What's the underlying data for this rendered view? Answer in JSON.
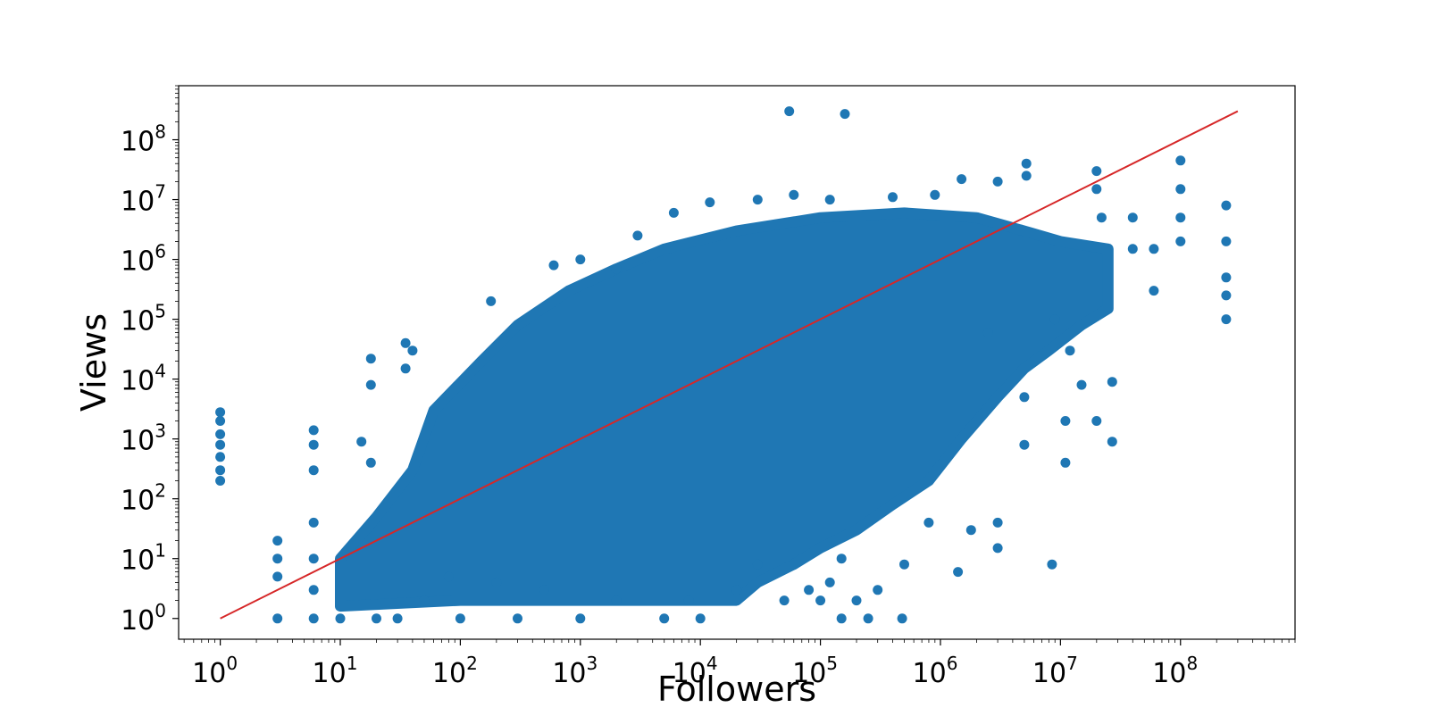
{
  "chart_data": {
    "type": "scatter",
    "title": "",
    "xlabel": "Followers",
    "ylabel": "Views",
    "x_scale": "log",
    "y_scale": "log",
    "xlim": [
      0.45,
      900000000
    ],
    "ylim": [
      0.45,
      800000000
    ],
    "x_ticks": [
      {
        "base": "10",
        "exp": "0",
        "value": 1
      },
      {
        "base": "10",
        "exp": "1",
        "value": 10
      },
      {
        "base": "10",
        "exp": "2",
        "value": 100
      },
      {
        "base": "10",
        "exp": "3",
        "value": 1000
      },
      {
        "base": "10",
        "exp": "4",
        "value": 10000
      },
      {
        "base": "10",
        "exp": "5",
        "value": 100000
      },
      {
        "base": "10",
        "exp": "6",
        "value": 1000000
      },
      {
        "base": "10",
        "exp": "7",
        "value": 10000000
      },
      {
        "base": "10",
        "exp": "8",
        "value": 100000000
      }
    ],
    "y_ticks": [
      {
        "base": "10",
        "exp": "0",
        "value": 1
      },
      {
        "base": "10",
        "exp": "1",
        "value": 10
      },
      {
        "base": "10",
        "exp": "2",
        "value": 100
      },
      {
        "base": "10",
        "exp": "3",
        "value": 1000
      },
      {
        "base": "10",
        "exp": "4",
        "value": 10000
      },
      {
        "base": "10",
        "exp": "5",
        "value": 100000
      },
      {
        "base": "10",
        "exp": "6",
        "value": 1000000
      },
      {
        "base": "10",
        "exp": "7",
        "value": 10000000
      },
      {
        "base": "10",
        "exp": "8",
        "value": 100000000
      }
    ],
    "grid": false,
    "legend": "none",
    "series": [
      {
        "kind": "scatter",
        "color": "#1f77b4",
        "points": [
          [
            1,
            2800
          ],
          [
            1,
            2000
          ],
          [
            1,
            1200
          ],
          [
            1,
            800
          ],
          [
            1,
            500
          ],
          [
            1,
            300
          ],
          [
            1,
            200
          ],
          [
            3,
            20
          ],
          [
            3,
            10
          ],
          [
            3,
            5
          ],
          [
            3,
            1
          ],
          [
            6,
            1400
          ],
          [
            6,
            800
          ],
          [
            6,
            300
          ],
          [
            6,
            40
          ],
          [
            6,
            10
          ],
          [
            6,
            3
          ],
          [
            6,
            1
          ],
          [
            10,
            1
          ],
          [
            15,
            900
          ],
          [
            18,
            22000
          ],
          [
            18,
            8000
          ],
          [
            18,
            400
          ],
          [
            35,
            40000
          ],
          [
            35,
            15000
          ],
          [
            40,
            30000
          ],
          [
            300,
            80000
          ],
          [
            180,
            200000
          ],
          [
            600,
            800000
          ],
          [
            1000,
            1000000
          ],
          [
            2000,
            700000
          ],
          [
            3000,
            2500000
          ],
          [
            6000,
            6000000
          ],
          [
            12000,
            9000000
          ],
          [
            30000,
            10000000
          ],
          [
            60000,
            12000000
          ],
          [
            120000,
            10000000
          ],
          [
            55000,
            300000000
          ],
          [
            160000,
            270000000
          ],
          [
            400000,
            11000000
          ],
          [
            900000,
            12000000
          ],
          [
            1500000,
            22000000
          ],
          [
            3000000,
            20000000
          ],
          [
            5200000,
            40000000
          ],
          [
            5200000,
            25000000
          ],
          [
            20000000,
            30000000
          ],
          [
            20000000,
            15000000
          ],
          [
            22000000,
            5000000
          ],
          [
            40000000,
            5000000
          ],
          [
            40000000,
            1500000
          ],
          [
            60000000,
            1500000
          ],
          [
            60000000,
            300000
          ],
          [
            100000000,
            45000000
          ],
          [
            100000000,
            15000000
          ],
          [
            100000000,
            5000000
          ],
          [
            100000000,
            2000000
          ],
          [
            240000000,
            8000000
          ],
          [
            240000000,
            2000000
          ],
          [
            240000000,
            500000
          ],
          [
            240000000,
            250000
          ],
          [
            240000000,
            100000
          ],
          [
            27000000,
            9000
          ],
          [
            27000000,
            900
          ],
          [
            8500000,
            8
          ],
          [
            1400000,
            6
          ],
          [
            480000,
            1
          ],
          [
            3000000,
            40
          ],
          [
            3000000,
            15
          ],
          [
            800000,
            40
          ],
          [
            1800000,
            30
          ],
          [
            500000,
            8
          ],
          [
            11000000,
            400
          ],
          [
            11000000,
            2000
          ],
          [
            20000000,
            2000
          ],
          [
            5000000,
            800
          ],
          [
            5000000,
            5000
          ],
          [
            12000000,
            30000
          ],
          [
            15000000,
            8000
          ],
          [
            9000000,
            100000
          ],
          [
            2500000,
            60000
          ],
          [
            150000,
            10
          ],
          [
            120000,
            4
          ],
          [
            80000,
            3
          ],
          [
            30000,
            8
          ],
          [
            20000,
            3
          ],
          [
            10000,
            1
          ],
          [
            5000,
            1
          ],
          [
            1000,
            1
          ],
          [
            300,
            1
          ],
          [
            100,
            1
          ],
          [
            30,
            1
          ],
          [
            20,
            1
          ],
          [
            50,
            2
          ],
          [
            80,
            5
          ],
          [
            200,
            4
          ],
          [
            500,
            3
          ],
          [
            2000,
            2
          ],
          [
            8000,
            2
          ],
          [
            50000,
            2
          ],
          [
            100000,
            2
          ],
          [
            200000,
            2
          ],
          [
            300000,
            3
          ],
          [
            250000,
            1
          ],
          [
            150000,
            1
          ]
        ]
      },
      {
        "kind": "line",
        "color": "#d62728",
        "points": [
          [
            1,
            1
          ],
          [
            300000000,
            300000000
          ]
        ]
      }
    ],
    "dense_region": {
      "description_hidden": true,
      "polygon": [
        [
          10,
          1.6
        ],
        [
          10,
          10
        ],
        [
          20,
          50
        ],
        [
          40,
          300
        ],
        [
          60,
          3000
        ],
        [
          150,
          20000
        ],
        [
          300,
          80000
        ],
        [
          800,
          300000
        ],
        [
          2000,
          700000
        ],
        [
          5000,
          1500000
        ],
        [
          20000,
          3000000
        ],
        [
          100000,
          5000000
        ],
        [
          500000,
          6000000
        ],
        [
          2000000,
          5000000
        ],
        [
          5000000,
          3000000
        ],
        [
          10000000,
          2000000
        ],
        [
          25000000,
          1500000
        ],
        [
          25000000,
          150000
        ],
        [
          15000000,
          80000
        ],
        [
          8000000,
          30000
        ],
        [
          5000000,
          15000
        ],
        [
          3000000,
          5000
        ],
        [
          1500000,
          1000
        ],
        [
          800000,
          200
        ],
        [
          400000,
          80
        ],
        [
          200000,
          30
        ],
        [
          100000,
          15
        ],
        [
          60000,
          8
        ],
        [
          30000,
          4
        ],
        [
          20000,
          2
        ],
        [
          3000,
          2
        ],
        [
          500,
          2
        ],
        [
          100,
          2
        ],
        [
          10,
          1.6
        ]
      ]
    }
  }
}
